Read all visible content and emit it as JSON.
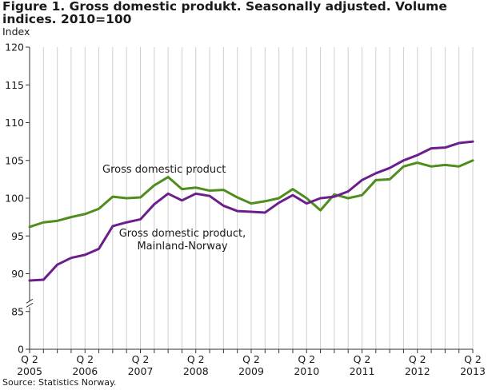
{
  "title": "Figure 1. Gross domestic produkt. Seasonally adjusted. Volume indices. 2010=100",
  "source": "Source: Statistics Norway.",
  "chart_data": {
    "type": "line",
    "ylabel": "Index",
    "ylim": [
      80,
      120
    ],
    "y_axis_break": true,
    "yticks": [
      "0",
      "85",
      "90",
      "95",
      "100",
      "105",
      "110",
      "115",
      "120"
    ],
    "ytick_values": [
      80,
      85,
      90,
      95,
      100,
      105,
      110,
      115,
      120
    ],
    "x_tick_labels": [
      {
        "q": "Q 2",
        "year": "2005",
        "index": 0
      },
      {
        "q": "Q 2",
        "year": "2006",
        "index": 4
      },
      {
        "q": "Q 2",
        "year": "2007",
        "index": 8
      },
      {
        "q": "Q 2",
        "year": "2008",
        "index": 12
      },
      {
        "q": "Q 2",
        "year": "2009",
        "index": 16
      },
      {
        "q": "Q 2",
        "year": "2010",
        "index": 20
      },
      {
        "q": "Q 2",
        "year": "2011",
        "index": 24
      },
      {
        "q": "Q 2",
        "year": "2012",
        "index": 28
      },
      {
        "q": "Q 2",
        "year": "2013",
        "index": 32
      }
    ],
    "grid": "vertical",
    "series": [
      {
        "name": "Gross domestic product",
        "color": "#4f8d1d",
        "values": [
          96.2,
          96.8,
          97.0,
          97.5,
          97.9,
          98.6,
          100.2,
          100.0,
          100.1,
          101.7,
          102.8,
          101.2,
          101.4,
          101.0,
          101.1,
          100.1,
          99.3,
          99.6,
          100.0,
          101.2,
          100.0,
          98.4,
          100.5,
          100.0,
          100.4,
          102.4,
          102.5,
          104.2,
          104.7,
          104.2,
          104.4,
          104.2,
          105.0
        ],
        "label_lines": [
          "Gross domestic product"
        ]
      },
      {
        "name": "Gross domestic product, Mainland-Norway",
        "color": "#6c1e8d",
        "values": [
          89.1,
          89.2,
          91.2,
          92.1,
          92.5,
          93.3,
          96.3,
          96.8,
          97.2,
          99.2,
          100.6,
          99.7,
          100.6,
          100.3,
          99.0,
          98.3,
          98.2,
          98.1,
          99.4,
          100.4,
          99.3,
          100.0,
          100.2,
          100.9,
          102.4,
          103.3,
          104.0,
          105.0,
          105.7,
          106.6,
          106.7,
          107.3,
          107.5
        ],
        "label_lines": [
          "Gross domestic product,",
          "Mainland-Norway"
        ]
      }
    ]
  }
}
